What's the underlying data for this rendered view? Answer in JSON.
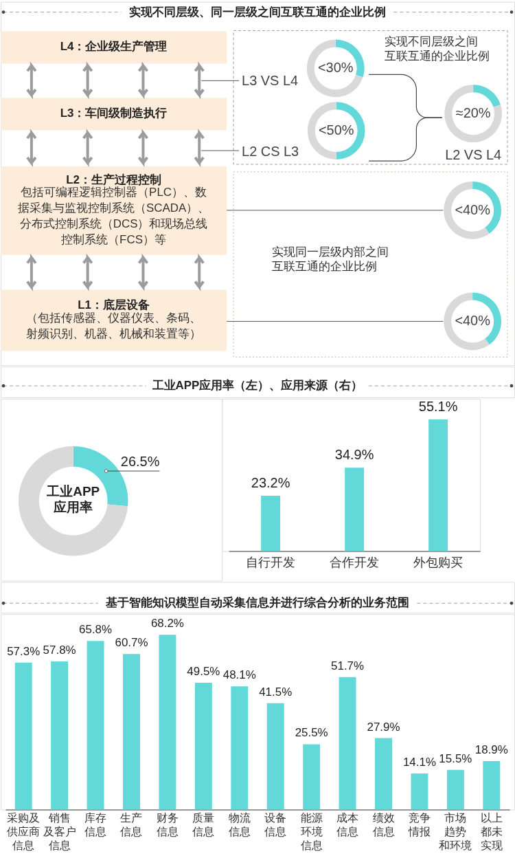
{
  "chart_data": [
    {
      "type": "other",
      "title": "实现不同层级、同一层级之间互联互通的企业比例",
      "annotations": [
        "L4：企业级生产管理",
        "L3：车间级制造执行",
        "L2：生产过程控制",
        "包括可编程逻辑控制器（PLC）、数据采集与监视控制系统（SCADA）、分布式控制系统（DCS）和现场总线控制系统（FCS）等",
        "L1：底层设备",
        "（包括传感器、仪器仪表、条码、射频识别、机器、机械和装置等）",
        "实现不同层级之间互联互通的企业比例",
        "实现同一层级内部之间互联互通的企业比例"
      ]
    },
    {
      "type": "donut",
      "values": [
        30,
        70
      ],
      "colors": [
        "#62d8d8",
        "#d9d9d9"
      ],
      "value_labels": [
        "<30%",
        null
      ],
      "annotations": [
        "L3 VS L4"
      ]
    },
    {
      "type": "donut",
      "values": [
        50,
        50
      ],
      "colors": [
        "#62d8d8",
        "#d9d9d9"
      ],
      "value_labels": [
        "<50%",
        null
      ],
      "annotations": [
        "L2 CS L3"
      ]
    },
    {
      "type": "donut",
      "values": [
        20,
        80
      ],
      "colors": [
        "#62d8d8",
        "#d9d9d9"
      ],
      "value_labels": [
        "≈20%",
        null
      ],
      "annotations": [
        "L2 VS L4"
      ]
    },
    {
      "type": "donut",
      "values": [
        40,
        60
      ],
      "colors": [
        "#62d8d8",
        "#d9d9d9"
      ],
      "value_labels": [
        "<40%",
        null
      ]
    },
    {
      "type": "donut",
      "values": [
        40,
        60
      ],
      "colors": [
        "#62d8d8",
        "#d9d9d9"
      ],
      "value_labels": [
        "<40%",
        null
      ]
    },
    {
      "type": "other",
      "title": "工业APP应用率（左）、应用来源（右）"
    },
    {
      "type": "donut",
      "values": [
        26.5,
        73.5
      ],
      "colors": [
        "#62d8d8",
        "#d9d9d9"
      ],
      "value_labels": [
        "26.5%",
        null
      ],
      "annotations": [
        "工业APP应用率"
      ]
    },
    {
      "type": "bar",
      "categories": [
        "自行开发",
        "合作开发",
        "外包购买"
      ],
      "values": [
        23.2,
        34.9,
        55.1
      ],
      "color": "#62d8d8",
      "value_labels": [
        "23.2%",
        "34.9%",
        "55.1%"
      ],
      "tick_labels": "x"
    },
    {
      "type": "bar",
      "title": "基于智能知识模型自动采集信息并进行综合分析的业务范围",
      "categories": [
        "采购及供应商信息",
        "销售及客户信息",
        "库存信息",
        "生产信息",
        "财务信息",
        "质量信息",
        "物流信息",
        "设备信息",
        "能源环境信息",
        "成本信息",
        "绩效信息",
        "竞争情报",
        "市场趋势和环境",
        "以上都未实现"
      ],
      "values": [
        57.3,
        57.8,
        65.8,
        60.7,
        68.2,
        49.5,
        48.1,
        41.5,
        25.5,
        51.7,
        27.9,
        14.1,
        15.5,
        18.9
      ],
      "color": "#62d8d8",
      "value_labels": [
        "57.3%",
        "57.8%",
        "65.8%",
        "60.7%",
        "68.2%",
        "49.5%",
        "48.1%",
        "41.5%",
        "25.5%",
        "51.7%",
        "27.9%",
        "14.1%",
        "15.5%",
        "18.9%"
      ],
      "tick_labels": "x"
    }
  ]
}
